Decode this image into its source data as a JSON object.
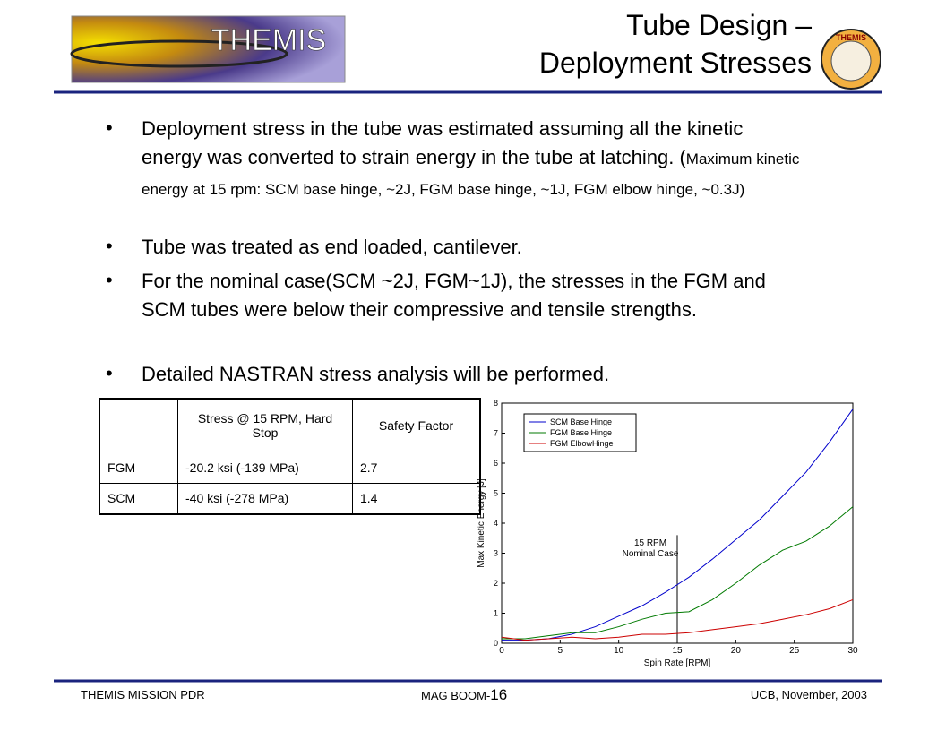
{
  "header": {
    "title_line1": "Tube Design –",
    "title_line2": "Deployment Stresses",
    "logo_text": "THEMIS"
  },
  "bullets": [
    {
      "text": "Deployment stress in the tube was estimated assuming all the kinetic energy was converted to strain energy in the tube at latching. (",
      "note": "Maximum kinetic energy at 15 rpm: SCM base hinge, ~2J, FGM base hinge, ~1J, FGM elbow hinge, ~0.3J)"
    },
    {
      "text": "Tube was treated as end loaded, cantilever."
    },
    {
      "text": "For the nominal case(SCM ~2J, FGM~1J), the stresses in the FGM and SCM tubes were below their compressive and tensile strengths."
    },
    {
      "text": "Detailed NASTRAN stress analysis will be performed."
    }
  ],
  "table": {
    "columns": [
      "Stress @ 15 RPM, Hard Stop",
      "Safety Factor"
    ],
    "rows": [
      [
        "FGM",
        "-20.2 ksi (-139 MPa)",
        "2.7"
      ],
      [
        "SCM",
        "-40 ksi (-278 MPa)",
        "1.4"
      ]
    ]
  },
  "chart_data": {
    "type": "line",
    "x_label": "Spin Rate [RPM]",
    "y_label": "Max Kinetic Energy [J]",
    "x": [
      0,
      2,
      4,
      6,
      8,
      10,
      12,
      14,
      16,
      18,
      20,
      22,
      24,
      26,
      28,
      30
    ],
    "series": [
      {
        "name": "SCM Base Hinge",
        "color": "#0000cc",
        "values": [
          0.1,
          0.1,
          0.15,
          0.3,
          0.55,
          0.9,
          1.25,
          1.7,
          2.2,
          2.8,
          3.45,
          4.1,
          4.9,
          5.7,
          6.7,
          7.8
        ]
      },
      {
        "name": "FGM Base Hinge",
        "color": "#007a00",
        "values": [
          0.15,
          0.15,
          0.25,
          0.35,
          0.35,
          0.55,
          0.8,
          1.0,
          1.05,
          1.45,
          2.0,
          2.6,
          3.1,
          3.4,
          3.9,
          4.55
        ]
      },
      {
        "name": "FGM ElbowHinge",
        "color": "#cc0000",
        "values": [
          0.2,
          0.1,
          0.15,
          0.2,
          0.15,
          0.2,
          0.3,
          0.3,
          0.35,
          0.45,
          0.55,
          0.65,
          0.8,
          0.95,
          1.15,
          1.45
        ]
      }
    ],
    "xlim": [
      0,
      30
    ],
    "xticks": [
      0,
      5,
      10,
      15,
      20,
      25,
      30
    ],
    "ylim": [
      0,
      8
    ],
    "yticks": [
      0,
      1,
      2,
      3,
      4,
      5,
      6,
      7,
      8
    ],
    "legend": "upper-left",
    "annotation": {
      "lines": [
        "15 RPM",
        "Nominal Case"
      ],
      "x": 15
    }
  },
  "footer": {
    "left": "THEMIS MISSION PDR",
    "center": "MAG BOOM-",
    "page": "16",
    "right": "UCB, November, 2003"
  }
}
